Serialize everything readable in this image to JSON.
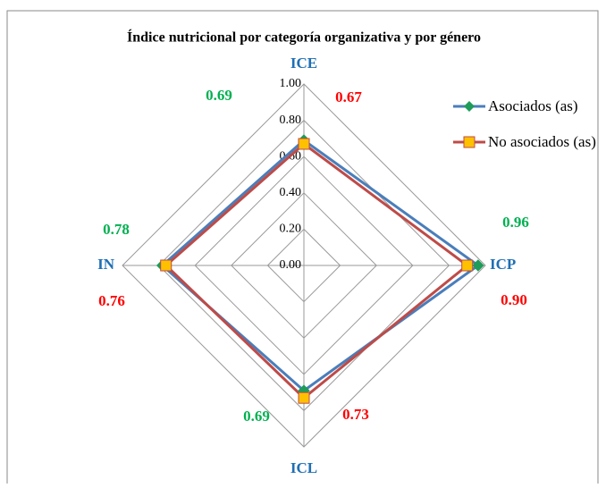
{
  "chart_data": {
    "type": "radar",
    "title": "Índice nutricional  por categoría organizativa y por género",
    "categories": [
      "ICE",
      "ICP",
      "ICL",
      "IN"
    ],
    "series": [
      {
        "name": "Asociados (as)",
        "color": "#4a7ebb",
        "marker_color": "#1f9c5a",
        "label_color": "#00b050",
        "values": [
          0.69,
          0.96,
          0.69,
          0.78
        ],
        "value_labels": [
          "0.69",
          "0.96",
          "0.69",
          "0.78"
        ]
      },
      {
        "name": "No asociados (as)",
        "color": "#be4b48",
        "marker_color": "#ffc000",
        "label_color": "#ff0000",
        "values": [
          0.67,
          0.9,
          0.73,
          0.76
        ],
        "value_labels": [
          "0.67",
          "0.90",
          "0.73",
          "0.76"
        ]
      }
    ],
    "ylim": [
      0,
      1
    ],
    "yticks": [
      {
        "value": 0,
        "label": "0.00"
      },
      {
        "value": 0.2,
        "label": "0.20"
      },
      {
        "value": 0.4,
        "label": "0.40"
      },
      {
        "value": 0.6,
        "label": "0.60"
      },
      {
        "value": 0.8,
        "label": "0.80"
      },
      {
        "value": 1,
        "label": "1.00"
      }
    ],
    "grid": true,
    "legend": "right"
  }
}
